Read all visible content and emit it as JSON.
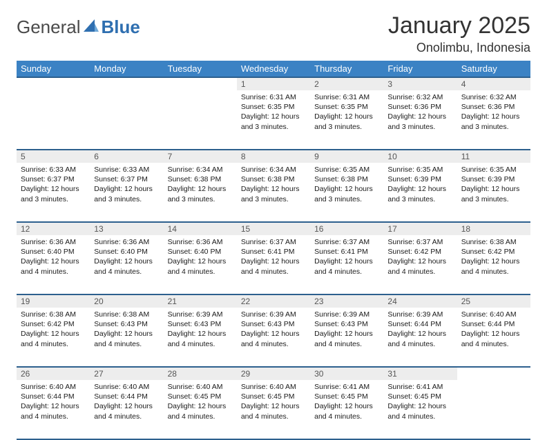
{
  "brand": {
    "text1": "General",
    "text2": "Blue"
  },
  "title": "January 2025",
  "location": "Onolimbu, Indonesia",
  "colors": {
    "header_bg": "#3b82c4",
    "header_text": "#ffffff",
    "border": "#2c5f8d",
    "daynum_bg": "#ededed",
    "brand_gray": "#4a4a4a",
    "brand_blue": "#2f6fb0"
  },
  "weekdays": [
    "Sunday",
    "Monday",
    "Tuesday",
    "Wednesday",
    "Thursday",
    "Friday",
    "Saturday"
  ],
  "weeks": [
    [
      null,
      null,
      null,
      {
        "n": "1",
        "sunrise": "6:31 AM",
        "sunset": "6:35 PM",
        "daylight": "12 hours and 3 minutes."
      },
      {
        "n": "2",
        "sunrise": "6:31 AM",
        "sunset": "6:35 PM",
        "daylight": "12 hours and 3 minutes."
      },
      {
        "n": "3",
        "sunrise": "6:32 AM",
        "sunset": "6:36 PM",
        "daylight": "12 hours and 3 minutes."
      },
      {
        "n": "4",
        "sunrise": "6:32 AM",
        "sunset": "6:36 PM",
        "daylight": "12 hours and 3 minutes."
      }
    ],
    [
      {
        "n": "5",
        "sunrise": "6:33 AM",
        "sunset": "6:37 PM",
        "daylight": "12 hours and 3 minutes."
      },
      {
        "n": "6",
        "sunrise": "6:33 AM",
        "sunset": "6:37 PM",
        "daylight": "12 hours and 3 minutes."
      },
      {
        "n": "7",
        "sunrise": "6:34 AM",
        "sunset": "6:38 PM",
        "daylight": "12 hours and 3 minutes."
      },
      {
        "n": "8",
        "sunrise": "6:34 AM",
        "sunset": "6:38 PM",
        "daylight": "12 hours and 3 minutes."
      },
      {
        "n": "9",
        "sunrise": "6:35 AM",
        "sunset": "6:38 PM",
        "daylight": "12 hours and 3 minutes."
      },
      {
        "n": "10",
        "sunrise": "6:35 AM",
        "sunset": "6:39 PM",
        "daylight": "12 hours and 3 minutes."
      },
      {
        "n": "11",
        "sunrise": "6:35 AM",
        "sunset": "6:39 PM",
        "daylight": "12 hours and 3 minutes."
      }
    ],
    [
      {
        "n": "12",
        "sunrise": "6:36 AM",
        "sunset": "6:40 PM",
        "daylight": "12 hours and 4 minutes."
      },
      {
        "n": "13",
        "sunrise": "6:36 AM",
        "sunset": "6:40 PM",
        "daylight": "12 hours and 4 minutes."
      },
      {
        "n": "14",
        "sunrise": "6:36 AM",
        "sunset": "6:40 PM",
        "daylight": "12 hours and 4 minutes."
      },
      {
        "n": "15",
        "sunrise": "6:37 AM",
        "sunset": "6:41 PM",
        "daylight": "12 hours and 4 minutes."
      },
      {
        "n": "16",
        "sunrise": "6:37 AM",
        "sunset": "6:41 PM",
        "daylight": "12 hours and 4 minutes."
      },
      {
        "n": "17",
        "sunrise": "6:37 AM",
        "sunset": "6:42 PM",
        "daylight": "12 hours and 4 minutes."
      },
      {
        "n": "18",
        "sunrise": "6:38 AM",
        "sunset": "6:42 PM",
        "daylight": "12 hours and 4 minutes."
      }
    ],
    [
      {
        "n": "19",
        "sunrise": "6:38 AM",
        "sunset": "6:42 PM",
        "daylight": "12 hours and 4 minutes."
      },
      {
        "n": "20",
        "sunrise": "6:38 AM",
        "sunset": "6:43 PM",
        "daylight": "12 hours and 4 minutes."
      },
      {
        "n": "21",
        "sunrise": "6:39 AM",
        "sunset": "6:43 PM",
        "daylight": "12 hours and 4 minutes."
      },
      {
        "n": "22",
        "sunrise": "6:39 AM",
        "sunset": "6:43 PM",
        "daylight": "12 hours and 4 minutes."
      },
      {
        "n": "23",
        "sunrise": "6:39 AM",
        "sunset": "6:43 PM",
        "daylight": "12 hours and 4 minutes."
      },
      {
        "n": "24",
        "sunrise": "6:39 AM",
        "sunset": "6:44 PM",
        "daylight": "12 hours and 4 minutes."
      },
      {
        "n": "25",
        "sunrise": "6:40 AM",
        "sunset": "6:44 PM",
        "daylight": "12 hours and 4 minutes."
      }
    ],
    [
      {
        "n": "26",
        "sunrise": "6:40 AM",
        "sunset": "6:44 PM",
        "daylight": "12 hours and 4 minutes."
      },
      {
        "n": "27",
        "sunrise": "6:40 AM",
        "sunset": "6:44 PM",
        "daylight": "12 hours and 4 minutes."
      },
      {
        "n": "28",
        "sunrise": "6:40 AM",
        "sunset": "6:45 PM",
        "daylight": "12 hours and 4 minutes."
      },
      {
        "n": "29",
        "sunrise": "6:40 AM",
        "sunset": "6:45 PM",
        "daylight": "12 hours and 4 minutes."
      },
      {
        "n": "30",
        "sunrise": "6:41 AM",
        "sunset": "6:45 PM",
        "daylight": "12 hours and 4 minutes."
      },
      {
        "n": "31",
        "sunrise": "6:41 AM",
        "sunset": "6:45 PM",
        "daylight": "12 hours and 4 minutes."
      },
      null
    ]
  ],
  "labels": {
    "sunrise": "Sunrise:",
    "sunset": "Sunset:",
    "daylight": "Daylight:"
  }
}
